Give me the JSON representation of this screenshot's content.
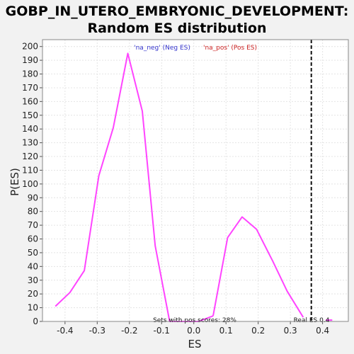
{
  "chart_data": {
    "type": "line",
    "title_line1": "GOBP_IN_UTERO_EMBRYONIC_DEVELOPMENT:",
    "title_line2": "Random ES distribution",
    "xlabel": "ES",
    "ylabel": "P(ES)",
    "xlim": [
      -0.47,
      0.48
    ],
    "ylim": [
      0,
      205
    ],
    "xticks": [
      -0.4,
      -0.3,
      -0.2,
      -0.1,
      0.0,
      0.1,
      0.2,
      0.3,
      0.4
    ],
    "xtick_labels": [
      "-0.4",
      "-0.3",
      "-0.2",
      "-0.1",
      "0.0",
      "0.1",
      "0.2",
      "0.3",
      "0.4"
    ],
    "yticks": [
      0,
      10,
      20,
      30,
      40,
      50,
      60,
      70,
      80,
      90,
      100,
      110,
      120,
      130,
      140,
      150,
      160,
      170,
      180,
      190,
      200
    ],
    "grid": true,
    "legend_position": "top-center",
    "series": [
      {
        "name": "'na_neg' (Neg ES)",
        "color": "#ff44ff",
        "legend_color": "#3333cc",
        "x": [
          -0.43,
          -0.385,
          -0.34,
          -0.295,
          -0.25,
          -0.205,
          -0.16,
          -0.12,
          -0.075,
          -0.03,
          0.015,
          0.06
        ],
        "y": [
          11,
          21,
          37,
          106,
          141,
          195,
          153,
          55,
          0,
          0,
          0,
          4
        ]
      },
      {
        "name": "'na_pos' (Pos ES)",
        "color": "#ff44ff",
        "legend_color": "#cc2222",
        "x": [
          0.06,
          0.105,
          0.15,
          0.195,
          0.245,
          0.29,
          0.34
        ],
        "y": [
          4,
          61,
          76,
          67,
          44,
          22,
          3
        ]
      },
      {
        "name": "tail",
        "color": "#ff44ff",
        "x": [
          0.41,
          0.43
        ],
        "y": [
          1,
          1
        ]
      }
    ],
    "real_es": 0.365,
    "annotations": {
      "pos_scores": "Sets with pos scores: 28%",
      "real_es": "Real ES 0.4"
    }
  },
  "colors": {
    "background": "#f2f2f2",
    "plot_background": "#ffffff",
    "grid": "#e4e4e4",
    "line": "#ff44ff",
    "real_es_line": "#111111"
  }
}
